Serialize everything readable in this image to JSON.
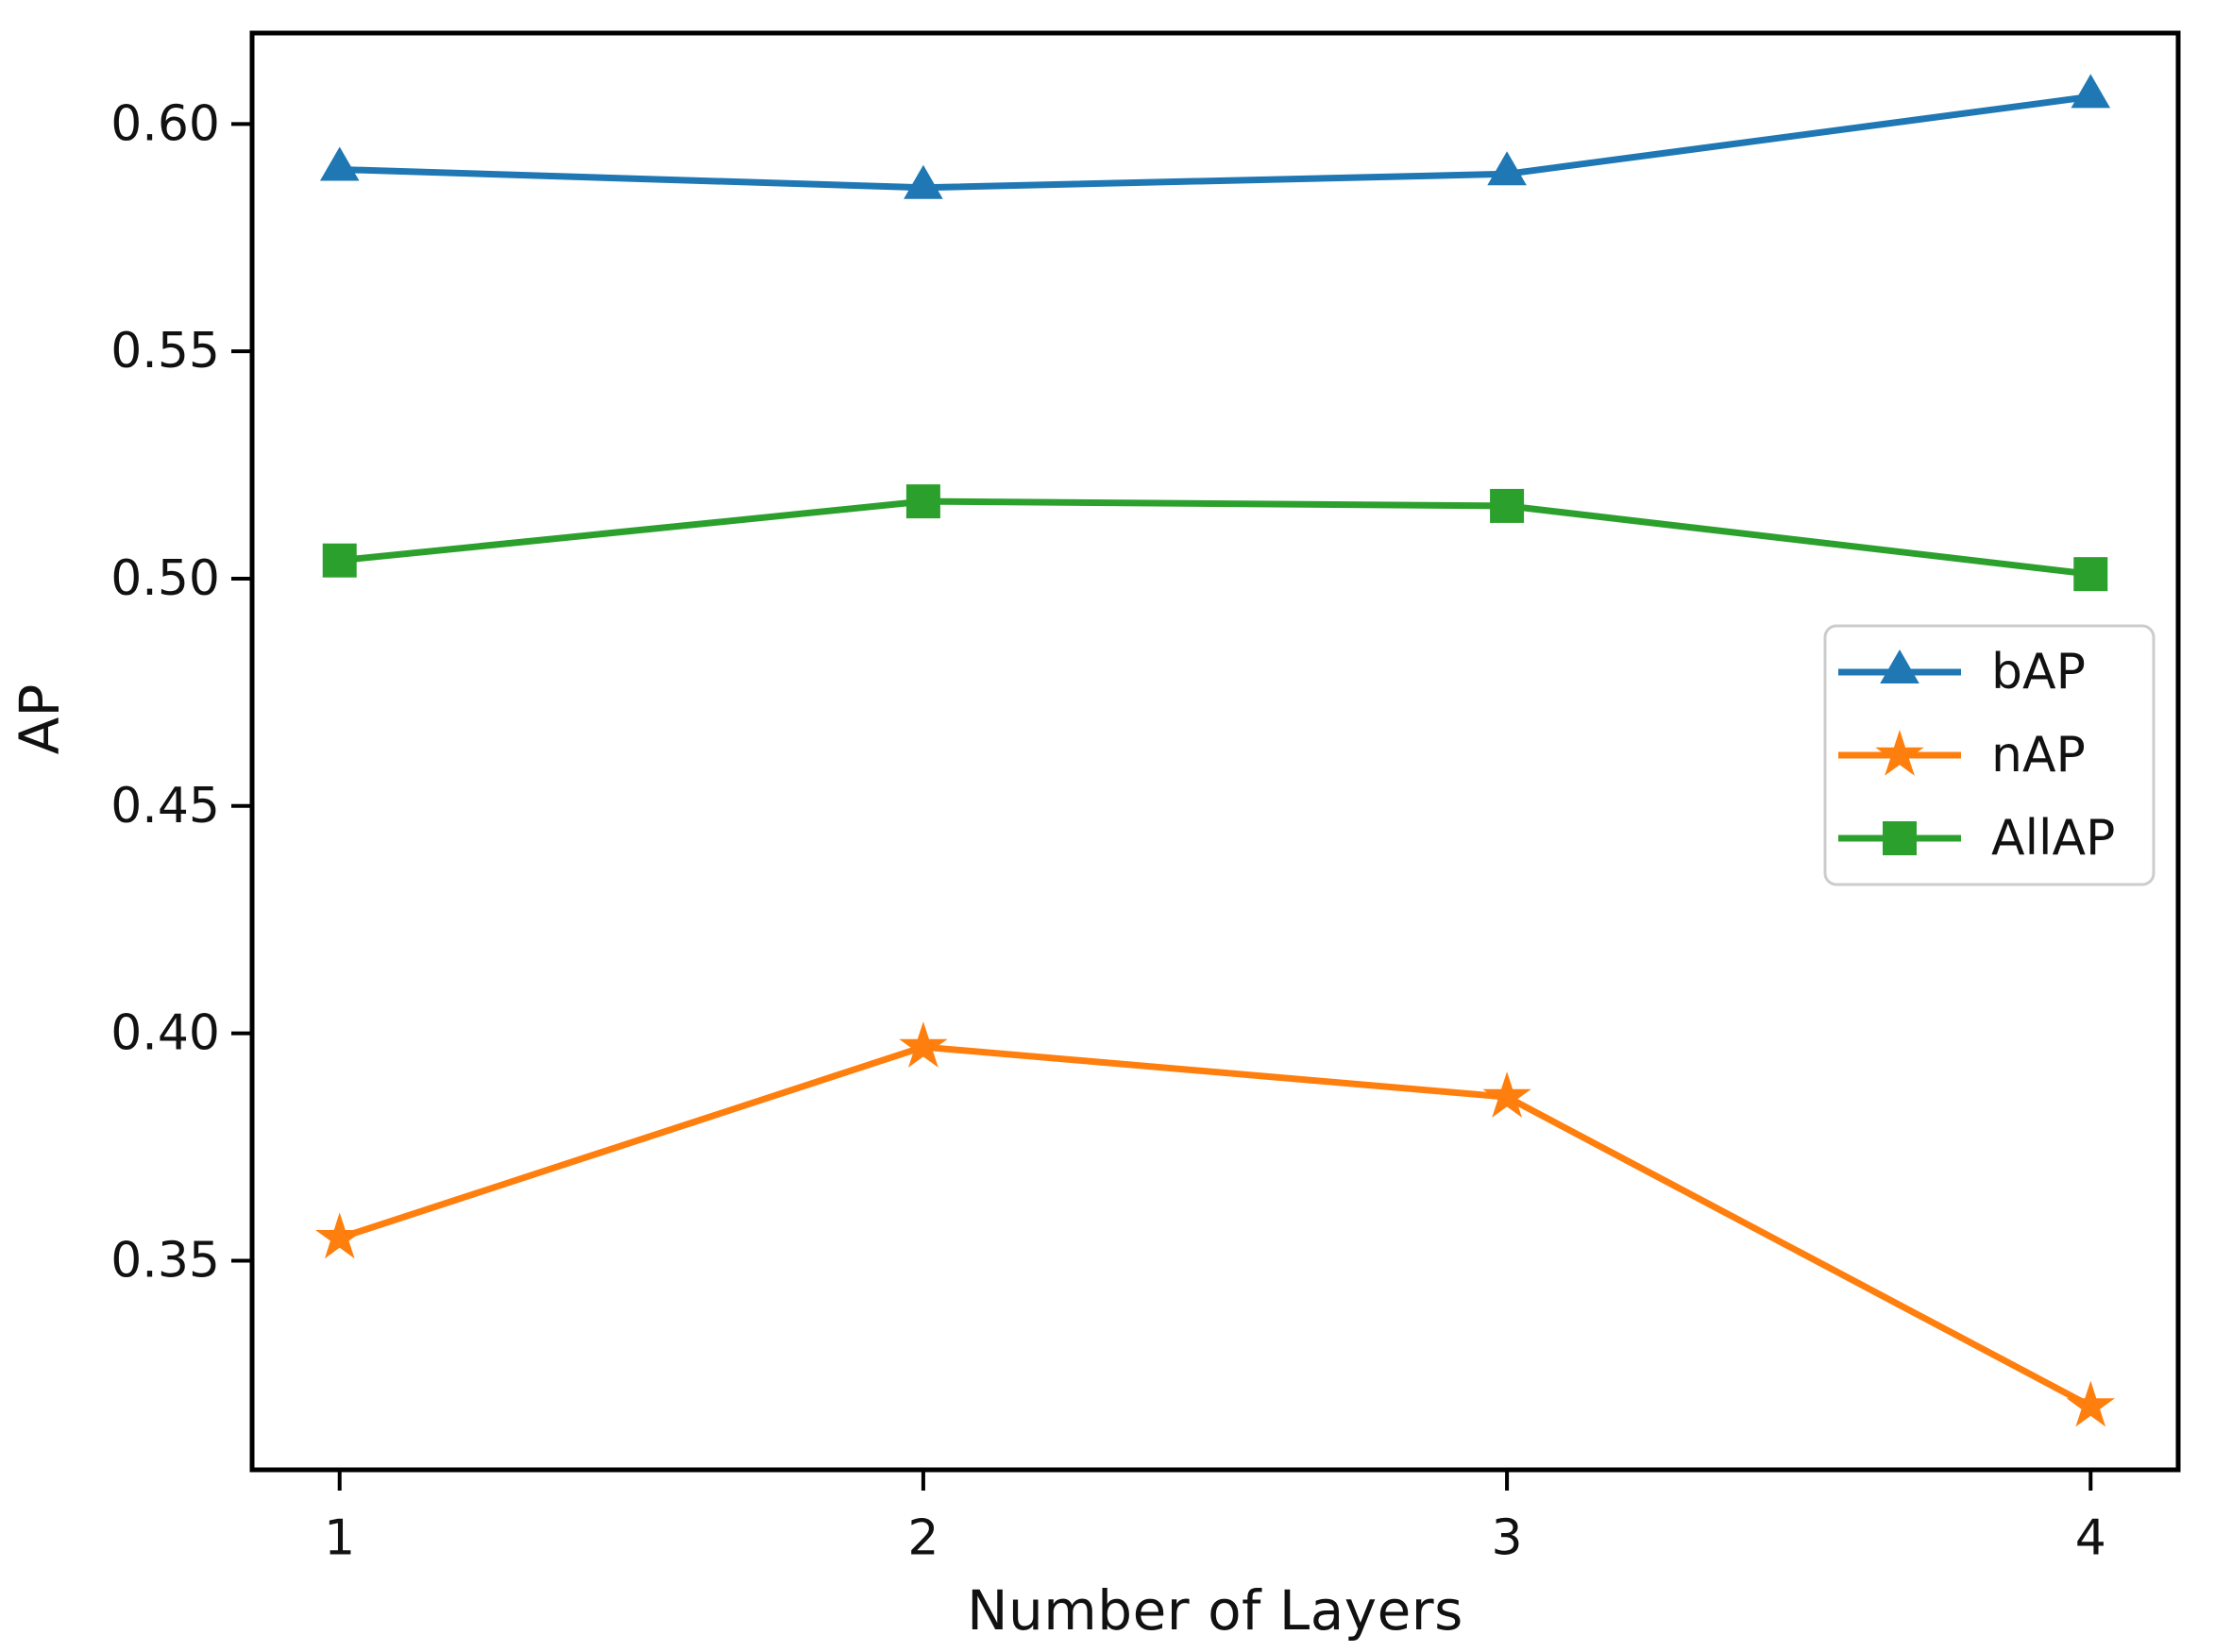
{
  "figure": {
    "background": "#ffffff",
    "text_color": "#111111",
    "axis_color": "#000000"
  },
  "chart_data": {
    "type": "line",
    "title": "",
    "xlabel": "Number of Layers",
    "ylabel": "AP",
    "x": [
      1,
      2,
      3,
      4
    ],
    "series": [
      {
        "name": "bAP",
        "color": "#1f77b4",
        "marker": "triangle",
        "values": [
          0.59,
          0.586,
          0.589,
          0.606
        ]
      },
      {
        "name": "nAP",
        "color": "#ff7f0e",
        "marker": "star",
        "values": [
          0.355,
          0.397,
          0.386,
          0.318
        ]
      },
      {
        "name": "AllAP",
        "color": "#2ca02c",
        "marker": "square",
        "values": [
          0.504,
          0.517,
          0.516,
          0.501
        ]
      }
    ],
    "xticks": {
      "values": [
        1,
        2,
        3,
        4
      ],
      "labels": [
        "1",
        "2",
        "3",
        "4"
      ]
    },
    "yticks": {
      "values": [
        0.35,
        0.4,
        0.45,
        0.5,
        0.55,
        0.6
      ],
      "labels": [
        "0.35",
        "0.40",
        "0.45",
        "0.50",
        "0.55",
        "0.60"
      ]
    },
    "xlim": [
      0.85,
      4.15
    ],
    "ylim": [
      0.304,
      0.62
    ],
    "grid": false,
    "legend": {
      "position": "center-right",
      "border_color": "#cccccc",
      "background": "#ffffff",
      "entries": [
        "bAP",
        "nAP",
        "AllAP"
      ]
    }
  }
}
